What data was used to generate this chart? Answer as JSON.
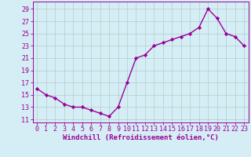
{
  "x": [
    0,
    1,
    2,
    3,
    4,
    5,
    6,
    7,
    8,
    9,
    10,
    11,
    12,
    13,
    14,
    15,
    16,
    17,
    18,
    19,
    20,
    21,
    22,
    23
  ],
  "y": [
    16,
    15,
    14.5,
    13.5,
    13,
    13,
    12.5,
    12,
    11.5,
    13,
    17,
    21,
    21.5,
    23,
    23.5,
    24,
    24.5,
    25,
    26,
    29,
    27.5,
    25,
    24.5,
    23
  ],
  "line_color": "#990099",
  "marker": "D",
  "markersize": 2.2,
  "linewidth": 1.0,
  "bg_color": "#d5eef5",
  "grid_color": "#b0cccc",
  "xlabel": "Windchill (Refroidissement éolien,°C)",
  "xlabel_fontsize": 6.5,
  "yticks": [
    11,
    13,
    15,
    17,
    19,
    21,
    23,
    25,
    27,
    29
  ],
  "xticks": [
    0,
    1,
    2,
    3,
    4,
    5,
    6,
    7,
    8,
    9,
    10,
    11,
    12,
    13,
    14,
    15,
    16,
    17,
    18,
    19,
    20,
    21,
    22,
    23
  ],
  "ylim": [
    10.5,
    30.2
  ],
  "xlim": [
    -0.5,
    23.5
  ],
  "tick_fontsize": 6.0,
  "tick_color": "#990099",
  "spine_color": "#990099"
}
